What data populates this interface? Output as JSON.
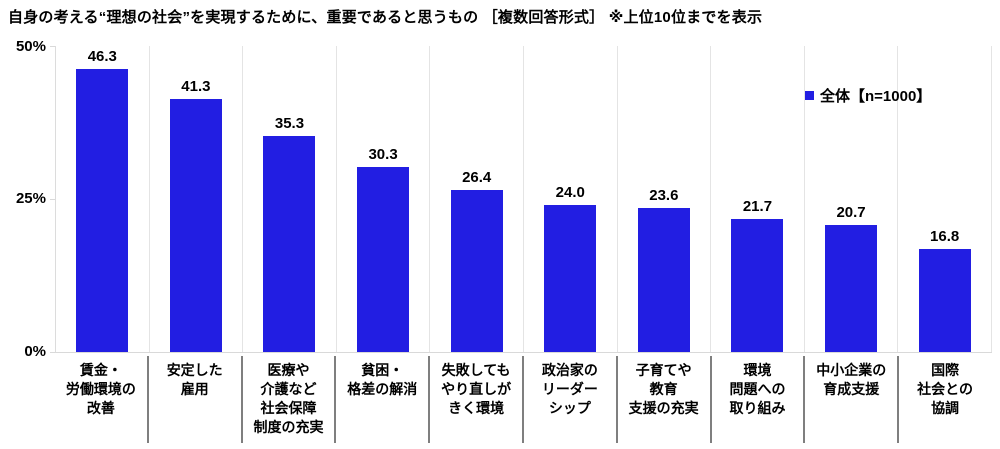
{
  "title": "自身の考える“理想の社会”を実現するために、重要であると思うもの ［複数回答形式］ ※上位10位までを表示",
  "legend": {
    "label": "全体【n=1000】",
    "swatch_color": "#221ee2"
  },
  "yaxis": {
    "ticks": [
      "50%",
      "25%",
      "0%"
    ]
  },
  "chart_data": {
    "type": "bar",
    "title": "自身の考える“理想の社会”を実現するために、重要であると思うもの ［複数回答形式］ ※上位10位までを表示",
    "series_name": "全体【n=1000】",
    "n": 1000,
    "categories": [
      "賃金・労働環境の改善",
      "安定した雇用",
      "医療や介護など社会保障制度の充実",
      "貧困・格差の解消",
      "失敗してもやり直しがきく環境",
      "政治家のリーダーシップ",
      "子育てや教育支援の充実",
      "環境問題への取り組み",
      "中小企業の育成支援",
      "国際社会との協調"
    ],
    "category_lines": [
      [
        "賃金・",
        "労働環境の",
        "改善"
      ],
      [
        "安定した",
        "雇用"
      ],
      [
        "医療や",
        "介護など",
        "社会保障",
        "制度の充実"
      ],
      [
        "貧困・",
        "格差の解消"
      ],
      [
        "失敗しても",
        "やり直しが",
        "きく環境"
      ],
      [
        "政治家の",
        "リーダー",
        "シップ"
      ],
      [
        "子育てや",
        "教育",
        "支援の充実"
      ],
      [
        "環境",
        "問題への",
        "取り組み"
      ],
      [
        "中小企業の",
        "育成支援"
      ],
      [
        "国際",
        "社会との",
        "協調"
      ]
    ],
    "values": [
      46.3,
      41.3,
      35.3,
      30.3,
      26.4,
      24.0,
      23.6,
      21.7,
      20.7,
      16.8
    ],
    "value_labels": [
      "46.3",
      "41.3",
      "35.3",
      "30.3",
      "26.4",
      "24.0",
      "23.6",
      "21.7",
      "20.7",
      "16.8"
    ],
    "unit": "%",
    "ylim": [
      0,
      50
    ],
    "ytick_labels": [
      "0%",
      "25%",
      "50%"
    ],
    "grid": "vertical-category-separators-only",
    "legend_position": "top-right",
    "bar_color": "#221ee2"
  }
}
